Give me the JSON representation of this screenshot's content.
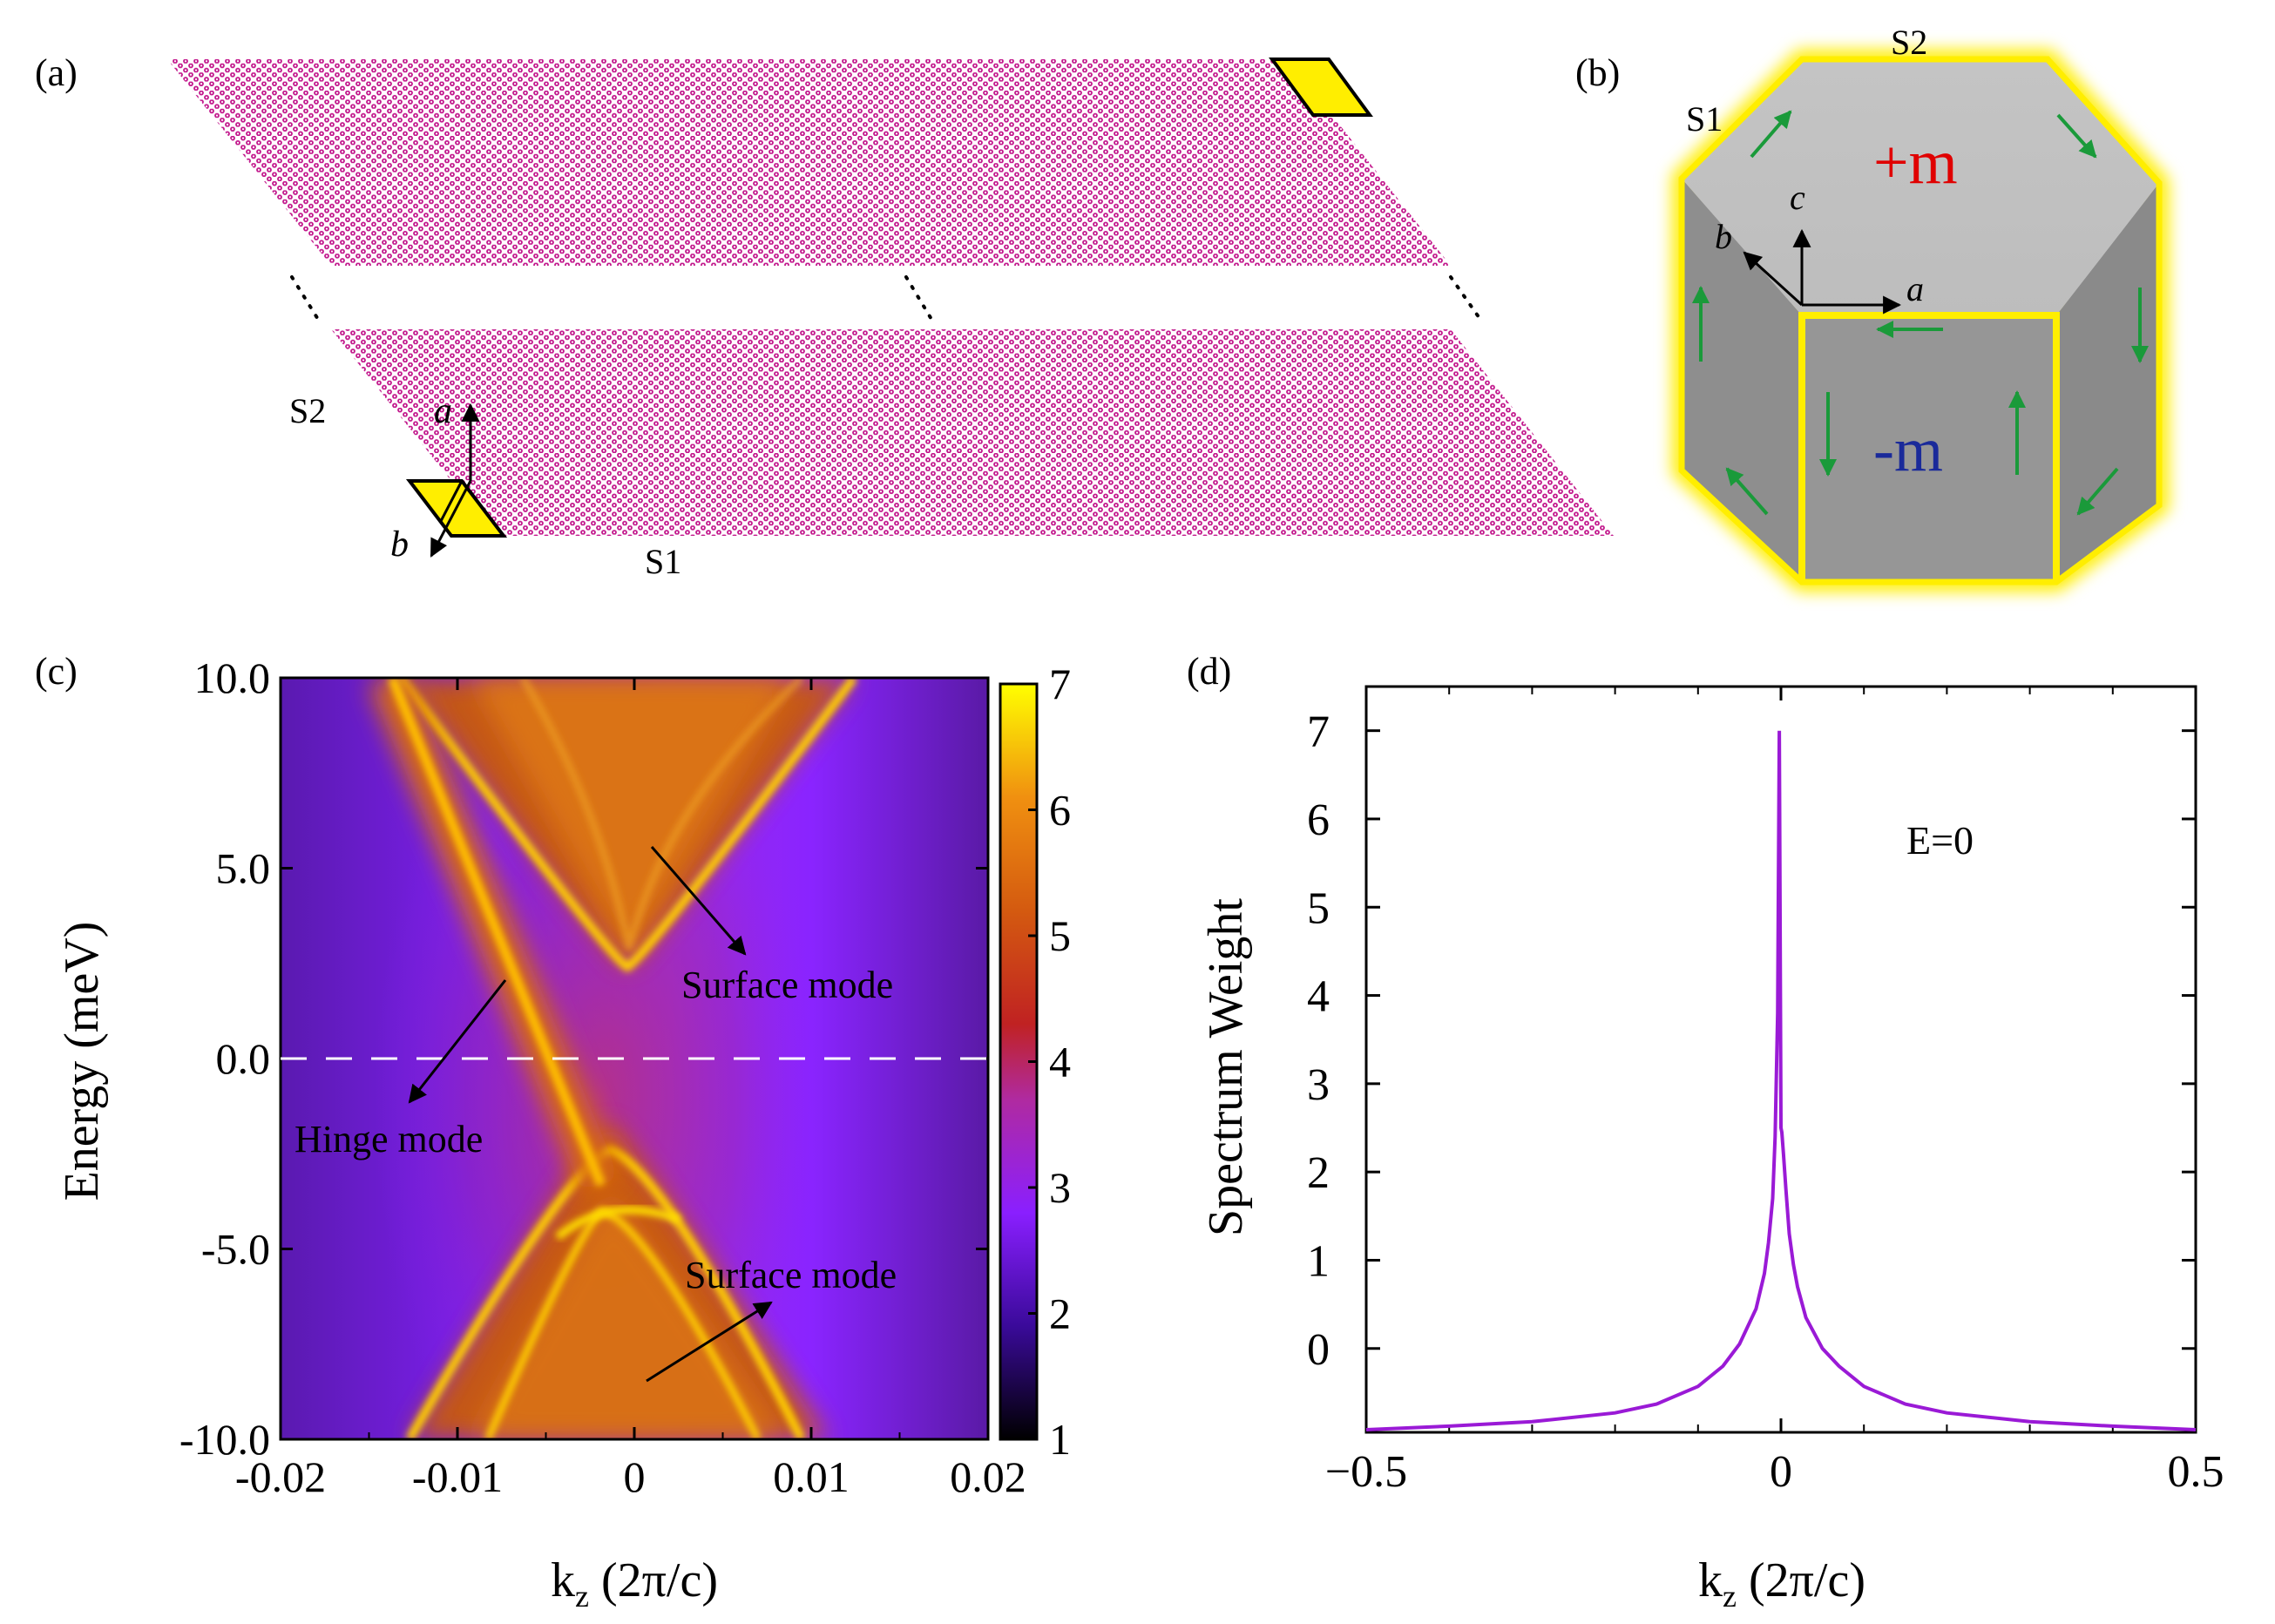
{
  "panel_a": {
    "label": "(a)",
    "edge_s1": "S1",
    "edge_s2": "S2",
    "axis_a": "a",
    "axis_b": "b",
    "site_color": "#c2188c",
    "cell_color": "#ffee00"
  },
  "panel_b": {
    "label": "(b)",
    "s1": "S1",
    "s2": "S2",
    "top_mass": "+m",
    "front_mass": "-m",
    "axis_a": "a",
    "axis_b": "b",
    "axis_c": "c",
    "top_mass_color": "#e00000",
    "front_mass_color": "#1a2a9a",
    "hinge_color": "#ffee00",
    "arrow_color": "#1a9a3a"
  },
  "panel_c": {
    "label": "(c)",
    "annotations": {
      "surface_upper": "Surface mode",
      "hinge": "Hinge mode",
      "surface_lower": "Surface mode"
    },
    "chart_data": {
      "type": "heatmap",
      "xlabel_main": "k",
      "xlabel_sub": "z",
      "xlabel_rest": " (2π/c)",
      "ylabel": "Energy (meV)",
      "xlim": [
        -0.02,
        0.02
      ],
      "ylim": [
        -10.0,
        10.0
      ],
      "xticks": [
        -0.02,
        -0.01,
        0,
        0.01,
        0.02
      ],
      "xtick_labels": [
        "-0.02",
        "-0.01",
        "0",
        "0.01",
        "0.02"
      ],
      "yticks": [
        10.0,
        5.0,
        0.0,
        -5.0,
        -10.0
      ],
      "ytick_labels": [
        "10.0",
        "5.0",
        "0.0",
        "-5.0",
        "-10.0"
      ],
      "dashed_line_energy": 0.0,
      "colorbar": {
        "min": 1,
        "max": 7,
        "ticks": [
          7,
          6,
          5,
          4,
          3,
          2,
          1
        ],
        "tick_labels": [
          "7",
          "6",
          "5",
          "4",
          "3",
          "2",
          "1"
        ]
      },
      "features": {
        "hinge_mode": {
          "from": [
            -0.0145,
            10.0
          ],
          "to": [
            -0.003,
            -3.8
          ]
        },
        "upper_surface_band_minimum": [
          0.0003,
          2.8
        ],
        "lower_surface_band_apex": [
          -0.0015,
          -4.0
        ]
      }
    }
  },
  "panel_d": {
    "label": "(d)",
    "annotation": "E=0",
    "chart_data": {
      "type": "line",
      "xlabel_main": "k",
      "xlabel_sub": "z",
      "xlabel_rest": " (2π/c)",
      "ylabel": "Spectrum Weight",
      "xlim": [
        -0.5,
        0.5
      ],
      "ylim": [
        -0.95,
        7.5
      ],
      "xticks": [
        -0.5,
        0,
        0.5
      ],
      "xtick_labels": [
        "−0.5",
        "0",
        "0.5"
      ],
      "yticks": [
        7,
        6,
        5,
        4,
        3,
        2,
        1,
        0
      ],
      "ytick_labels": [
        "7",
        "6",
        "5",
        "4",
        "3",
        "2",
        "1",
        "0"
      ],
      "line_color": "#9a1ad6",
      "series": [
        {
          "name": "E=0",
          "x": [
            -0.5,
            -0.4,
            -0.3,
            -0.2,
            -0.15,
            -0.1,
            -0.07,
            -0.05,
            -0.03,
            -0.02,
            -0.015,
            -0.01,
            -0.007,
            -0.004,
            -0.002,
            0.0,
            0.001,
            0.003,
            0.006,
            0.01,
            0.015,
            0.02,
            0.03,
            0.05,
            0.07,
            0.1,
            0.15,
            0.2,
            0.3,
            0.4,
            0.5
          ],
          "y": [
            -0.92,
            -0.88,
            -0.83,
            -0.73,
            -0.63,
            -0.43,
            -0.2,
            0.05,
            0.45,
            0.85,
            1.2,
            1.7,
            2.4,
            3.8,
            7.0,
            2.5,
            2.45,
            2.2,
            1.8,
            1.3,
            0.95,
            0.7,
            0.35,
            0.0,
            -0.2,
            -0.43,
            -0.63,
            -0.73,
            -0.83,
            -0.88,
            -0.92
          ]
        }
      ]
    }
  }
}
